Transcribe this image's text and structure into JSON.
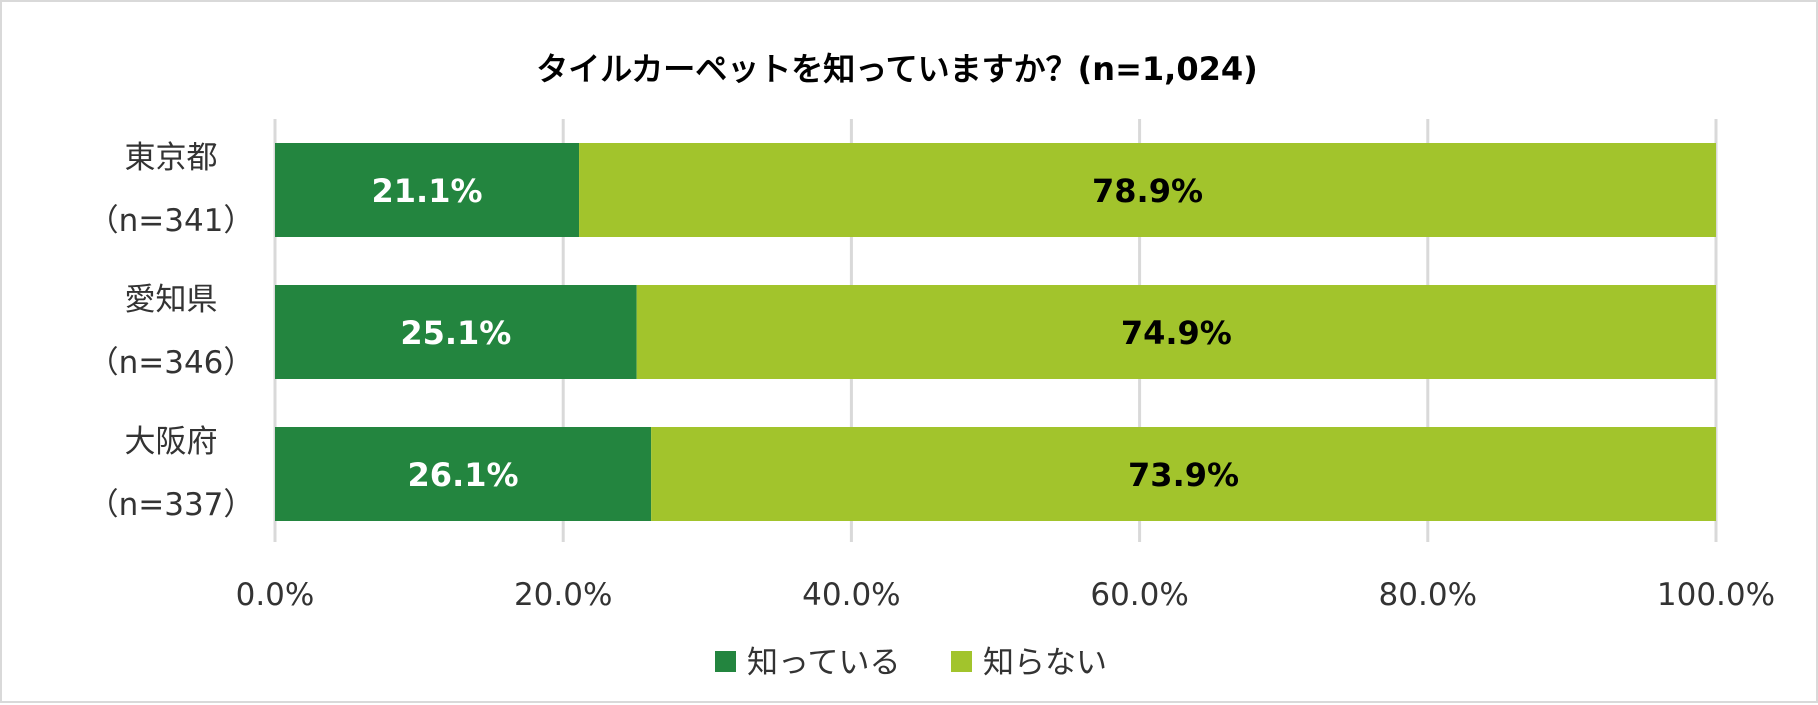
{
  "chart_data": {
    "type": "bar",
    "orientation": "horizontal",
    "stacked": "percent",
    "title": "タイルカーペットを知っていますか？(n=1,024)",
    "categories": [
      {
        "name": "東京都",
        "n": "（n=341）"
      },
      {
        "name": "愛知県",
        "n": "（n=346）"
      },
      {
        "name": "大阪府",
        "n": "（n=337）"
      }
    ],
    "series": [
      {
        "name": "知っている",
        "values": [
          21.1,
          25.1,
          26.1
        ],
        "labels": [
          "21.1%",
          "25.1%",
          "26.1%"
        ],
        "color": "#23853F",
        "label_color": "#ffffff"
      },
      {
        "name": "知らない",
        "values": [
          78.9,
          74.9,
          73.9
        ],
        "labels": [
          "78.9%",
          "74.9%",
          "73.9%"
        ],
        "color": "#A2C42C",
        "label_color": "#000000"
      }
    ],
    "xlim": [
      0,
      100
    ],
    "x_ticks": [
      0,
      20,
      40,
      60,
      80,
      100
    ],
    "x_tick_labels": [
      "0.0%",
      "20.0%",
      "40.0%",
      "60.0%",
      "80.0%",
      "100.0%"
    ],
    "grid": "vertical",
    "grid_color": "#d9d9d9",
    "legend_position": "bottom"
  }
}
